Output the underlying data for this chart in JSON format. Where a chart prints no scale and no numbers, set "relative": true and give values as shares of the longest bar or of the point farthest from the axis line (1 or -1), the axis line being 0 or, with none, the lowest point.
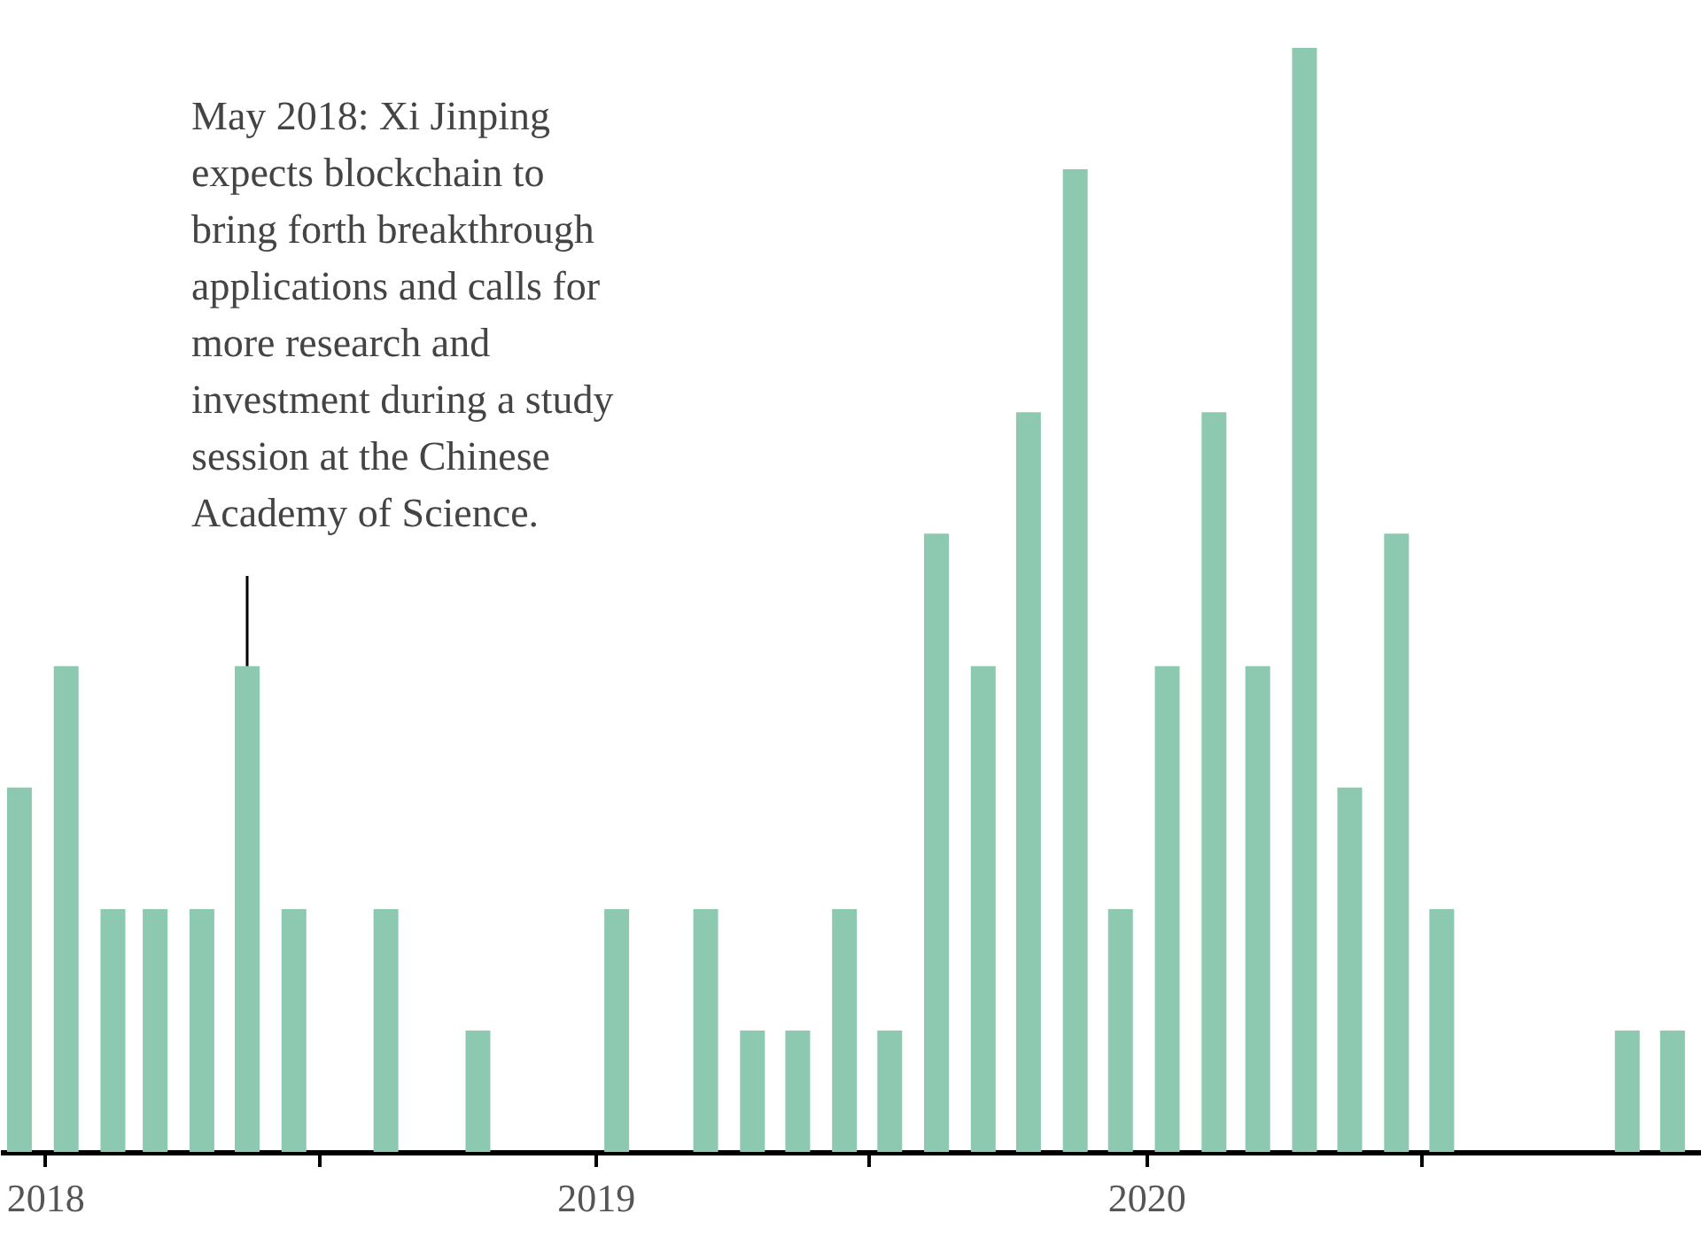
{
  "chart_data": {
    "type": "bar",
    "relative": true,
    "x": [
      "2017-12-15",
      "2018-01-15",
      "2018-02-15",
      "2018-03-15",
      "2018-04-15",
      "2018-05-15",
      "2018-06-15",
      "2018-08-15",
      "2018-10-15",
      "2019-01-15",
      "2019-03-15",
      "2019-04-15",
      "2019-05-15",
      "2019-06-15",
      "2019-07-15",
      "2019-08-15",
      "2019-09-15",
      "2019-10-15",
      "2019-11-15",
      "2019-12-15",
      "2020-01-15",
      "2020-02-15",
      "2020-03-15",
      "2020-04-15",
      "2020-05-15",
      "2020-06-15",
      "2020-07-15",
      "2020-11-15",
      "2020-12-15"
    ],
    "series": [
      {
        "color": "#8dc9b0",
        "values": [
          0.33,
          0.44,
          0.22,
          0.22,
          0.22,
          0.44,
          0.22,
          0.22,
          0.11,
          0.22,
          0.22,
          0.11,
          0.11,
          0.22,
          0.11,
          0.56,
          0.44,
          0.67,
          0.89,
          0.22,
          0.44,
          0.67,
          0.44,
          1.0,
          0.33,
          0.56,
          0.22,
          0.11,
          0.11
        ]
      }
    ],
    "xlim": [
      "2017-12-08",
      "2020-12-28"
    ],
    "xticks": [
      "2018",
      {
        "value": "2018-07",
        "label": null
      },
      "2019",
      {
        "value": "2019-07",
        "label": null
      },
      "2020",
      {
        "value": "2020-07",
        "label": null
      }
    ],
    "grid": false,
    "legend": false,
    "annotations": [
      {
        "text": "May 2018: Xi Jinping expects blockchain to bring forth breakthrough applications and calls for more research and investment during a study session at the Chinese Academy of Science.",
        "x": "2018-05-15",
        "y": 0.44
      }
    ]
  }
}
